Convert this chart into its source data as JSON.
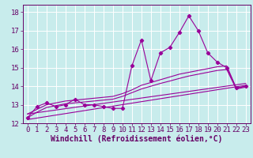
{
  "title": "",
  "xlabel": "Windchill (Refroidissement éolien,°C)",
  "bg_color": "#c8ecec",
  "grid_color": "#ffffff",
  "line_color": "#990099",
  "xlim": [
    -0.5,
    23.5
  ],
  "ylim": [
    12,
    18.4
  ],
  "xticks": [
    0,
    1,
    2,
    3,
    4,
    5,
    6,
    7,
    8,
    9,
    10,
    11,
    12,
    13,
    14,
    15,
    16,
    17,
    18,
    19,
    20,
    21,
    22,
    23
  ],
  "yticks": [
    12,
    13,
    14,
    15,
    16,
    17,
    18
  ],
  "line1_x": [
    0,
    1,
    2,
    3,
    4,
    5,
    6,
    7,
    8,
    9,
    10,
    11,
    12,
    13,
    14,
    15,
    16,
    17,
    18,
    19,
    20,
    21,
    22,
    23
  ],
  "line1_y": [
    12.3,
    12.9,
    13.1,
    12.9,
    13.0,
    13.3,
    13.0,
    13.0,
    12.9,
    12.8,
    12.8,
    15.1,
    16.5,
    14.3,
    15.8,
    16.1,
    16.9,
    17.8,
    17.0,
    15.8,
    15.3,
    15.0,
    13.9,
    14.0
  ],
  "line2_x": [
    0,
    1,
    2,
    3,
    4,
    5,
    6,
    7,
    8,
    9,
    10,
    11,
    12,
    13,
    14,
    15,
    16,
    17,
    18,
    19,
    20,
    21,
    22,
    23
  ],
  "line2_y": [
    12.5,
    12.75,
    13.0,
    13.1,
    13.2,
    13.25,
    13.3,
    13.35,
    13.4,
    13.45,
    13.6,
    13.8,
    14.05,
    14.2,
    14.35,
    14.5,
    14.65,
    14.75,
    14.85,
    14.95,
    15.05,
    15.1,
    13.9,
    14.0
  ],
  "line3_x": [
    0,
    1,
    2,
    3,
    4,
    5,
    6,
    7,
    8,
    9,
    10,
    11,
    12,
    13,
    14,
    15,
    16,
    17,
    18,
    19,
    20,
    21,
    22,
    23
  ],
  "line3_y": [
    12.3,
    12.6,
    12.85,
    12.95,
    13.05,
    13.1,
    13.15,
    13.2,
    13.25,
    13.3,
    13.45,
    13.65,
    13.85,
    14.0,
    14.15,
    14.28,
    14.42,
    14.55,
    14.65,
    14.75,
    14.85,
    14.9,
    13.85,
    13.95
  ],
  "line4_x": [
    0,
    23
  ],
  "line4_y": [
    12.2,
    14.05
  ],
  "line5_x": [
    0,
    23
  ],
  "line5_y": [
    12.5,
    14.15
  ],
  "tick_fontsize": 6.5,
  "label_fontsize": 7
}
